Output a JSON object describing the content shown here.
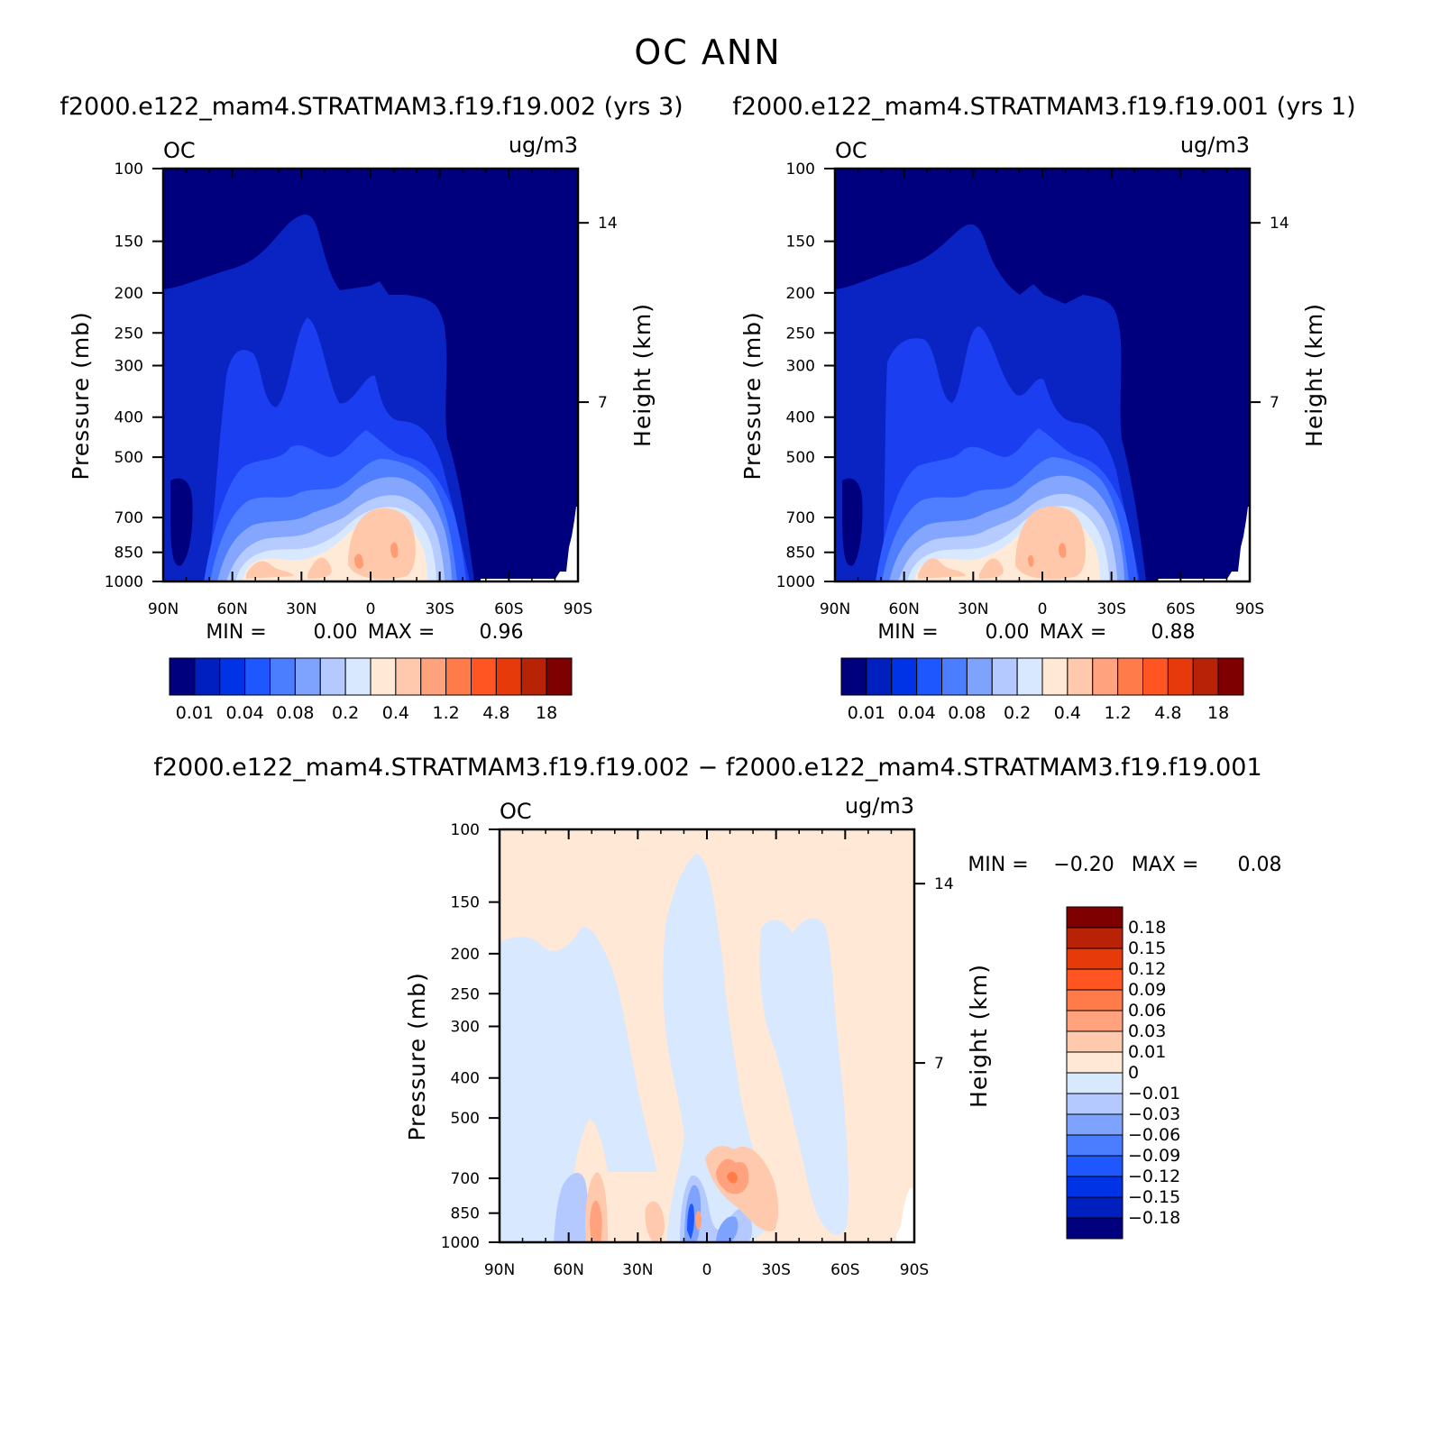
{
  "figure": {
    "title": "OC ANN",
    "diff_title": "f2000.e122_mam4.STRATMAM3.f19.f19.002  −  f2000.e122_mam4.STRATMAM3.f19.f19.001"
  },
  "colors": {
    "abs_scale": [
      "#00007f",
      "#001fbf",
      "#0033e6",
      "#1f57ff",
      "#4a7dff",
      "#7ea3ff",
      "#b3c9ff",
      "#d7e8ff",
      "#ffe9d6",
      "#ffc9ad",
      "#ffa27d",
      "#ff7b4a",
      "#ff5522",
      "#e63a0a",
      "#b82308",
      "#7f0000"
    ],
    "diff_scale": [
      "#00007f",
      "#001fbf",
      "#0033e6",
      "#1f57ff",
      "#4a7dff",
      "#7ea3ff",
      "#b3c9ff",
      "#d7e8ff",
      "#ffe9d6",
      "#ffc9ad",
      "#ffa27d",
      "#ff7b4a",
      "#ff5522",
      "#e63a0a",
      "#b82308",
      "#7f0000"
    ],
    "background_abs": "#00007f",
    "background_diff": "#ffe9d6"
  },
  "chart_data": [
    {
      "type": "heatmap",
      "panel": "case1",
      "title": "f2000.e122_mam4.STRATMAM3.f19.f19.002 (yrs 3)",
      "variable": "OC",
      "units": "ug/m3",
      "xlabel": "",
      "ylabel": "Pressure (mb)",
      "y2label": "Height (km)",
      "x_ticks": [
        "90N",
        "60N",
        "30N",
        "0",
        "30S",
        "60S",
        "90S"
      ],
      "y_ticks": [
        "100",
        "150",
        "200",
        "250",
        "300",
        "400",
        "500",
        "700",
        "850",
        "1000"
      ],
      "y2_ticks": [
        "14",
        "7"
      ],
      "min_label": "MIN =",
      "min_value": "0.00",
      "max_label": "MAX =",
      "max_value": "0.96",
      "colorbar_labels": [
        "0.01",
        "0.04",
        "0.08",
        "0.2",
        "0.4",
        "1.2",
        "4.8",
        "18"
      ],
      "contour_levels": [
        0.01,
        0.02,
        0.04,
        0.06,
        0.08,
        0.1,
        0.2,
        0.3,
        0.4,
        0.6,
        1.2,
        2.4,
        4.8,
        9.6,
        18
      ]
    },
    {
      "type": "heatmap",
      "panel": "case2",
      "title": "f2000.e122_mam4.STRATMAM3.f19.f19.001 (yrs 1)",
      "variable": "OC",
      "units": "ug/m3",
      "xlabel": "",
      "ylabel": "Pressure (mb)",
      "y2label": "Height (km)",
      "x_ticks": [
        "90N",
        "60N",
        "30N",
        "0",
        "30S",
        "60S",
        "90S"
      ],
      "y_ticks": [
        "100",
        "150",
        "200",
        "250",
        "300",
        "400",
        "500",
        "700",
        "850",
        "1000"
      ],
      "y2_ticks": [
        "14",
        "7"
      ],
      "min_label": "MIN =",
      "min_value": "0.00",
      "max_label": "MAX =",
      "max_value": "0.88",
      "colorbar_labels": [
        "0.01",
        "0.04",
        "0.08",
        "0.2",
        "0.4",
        "1.2",
        "4.8",
        "18"
      ],
      "contour_levels": [
        0.01,
        0.02,
        0.04,
        0.06,
        0.08,
        0.1,
        0.2,
        0.3,
        0.4,
        0.6,
        1.2,
        2.4,
        4.8,
        9.6,
        18
      ]
    },
    {
      "type": "heatmap",
      "panel": "diff",
      "variable": "OC",
      "units": "ug/m3",
      "xlabel": "",
      "ylabel": "Pressure (mb)",
      "y2label": "Height (km)",
      "x_ticks": [
        "90N",
        "60N",
        "30N",
        "0",
        "30S",
        "60S",
        "90S"
      ],
      "y_ticks": [
        "100",
        "150",
        "200",
        "250",
        "300",
        "400",
        "500",
        "700",
        "850",
        "1000"
      ],
      "y2_ticks": [
        "14",
        "7"
      ],
      "min_label": "MIN =",
      "min_value": "−0.20",
      "max_label": "MAX =",
      "max_value": "0.08",
      "colorbar_labels": [
        "0.18",
        "0.15",
        "0.12",
        "0.09",
        "0.06",
        "0.03",
        "0.01",
        "0",
        "−0.01",
        "−0.03",
        "−0.06",
        "−0.09",
        "−0.12",
        "−0.15",
        "−0.18"
      ]
    }
  ]
}
